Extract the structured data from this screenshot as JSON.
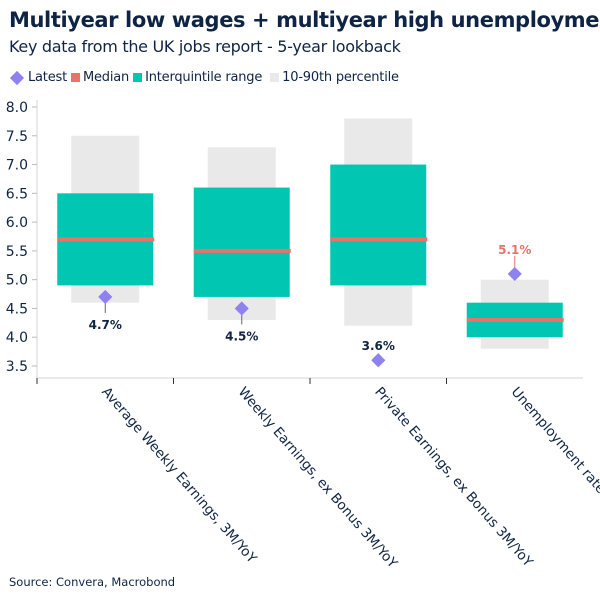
{
  "title": "Multiyear low wages + multiyear high unemployment",
  "subtitle": "Key data from the UK jobs report - 5-year lookback",
  "source": "Source: Convera, Macrobond",
  "colors": {
    "latest": "#8f82f0",
    "median": "#e8736a",
    "iqr": "#00c6b2",
    "p10_90": "#e9e9e9",
    "text": "#0f2444"
  },
  "legend": {
    "latest": "Latest",
    "median": "Median",
    "iqr": "Interquintile range",
    "p10_90": "10-90th percentile"
  },
  "chart_data": {
    "type": "box",
    "title": "Multiyear low wages + multiyear high unemployment",
    "ylim": [
      3.5,
      8.0
    ],
    "yticks": [
      "3.5",
      "4.0",
      "4.5",
      "5.0",
      "5.5",
      "6.0",
      "6.5",
      "7.0",
      "7.5",
      "8.0"
    ],
    "grid": false,
    "legend_position": "top-left",
    "categories": [
      "Average Weekly Earnings, 3M/YoY",
      "Weekly Earnings, ex Bonus 3M/YoY",
      "Private Earnings, ex Bonus 3M/YoY",
      "Unemployment rate"
    ],
    "p10": [
      4.6,
      4.3,
      4.2,
      3.8
    ],
    "p90": [
      7.5,
      7.3,
      7.8,
      5.0
    ],
    "iqr_low": [
      4.9,
      4.7,
      4.9,
      4.0
    ],
    "iqr_high": [
      6.5,
      6.6,
      7.0,
      4.6
    ],
    "median": [
      5.7,
      5.5,
      5.7,
      4.3
    ],
    "latest": [
      4.7,
      4.5,
      3.6,
      5.1
    ],
    "latest_labels": [
      "4.7%",
      "4.5%",
      "3.6%",
      "5.1%"
    ]
  }
}
